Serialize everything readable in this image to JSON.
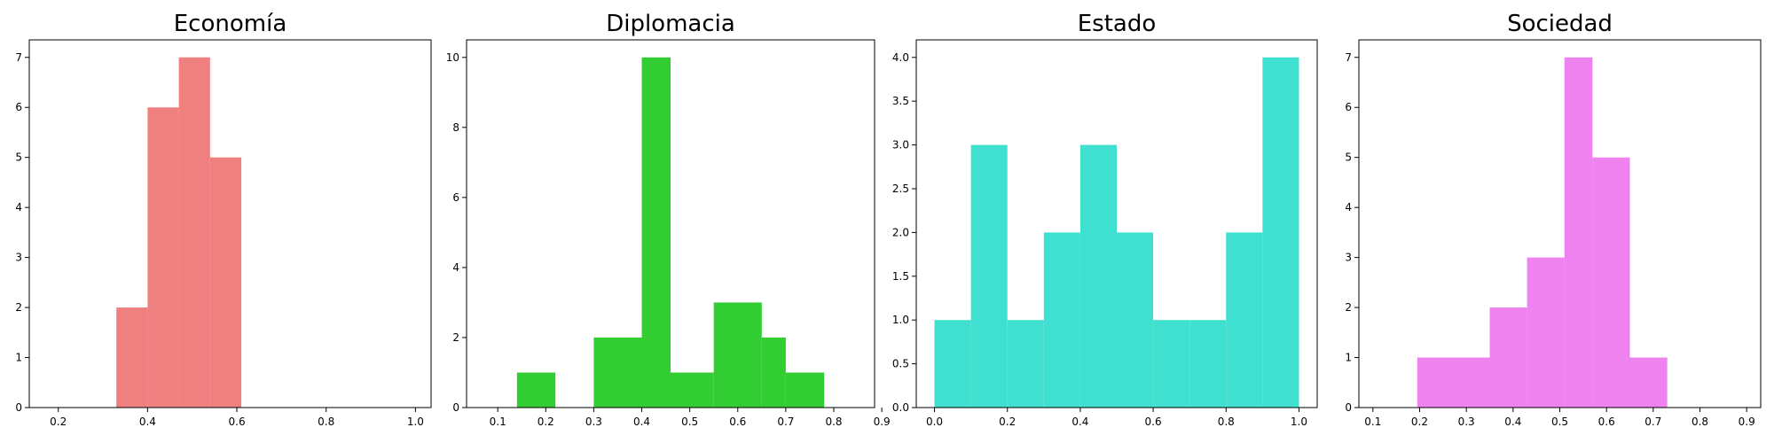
{
  "chart_data": [
    {
      "type": "bar",
      "title": "Economía",
      "color": "#f08080",
      "xlim": [
        0.135,
        1.035
      ],
      "ylim": [
        0,
        7.35
      ],
      "xticks": [
        0.2,
        0.4,
        0.6,
        0.8,
        1.0
      ],
      "xtick_labels": [
        "0.2",
        "0.4",
        "0.6",
        "0.8",
        "1.0"
      ],
      "yticks": [
        0,
        1,
        2,
        3,
        4,
        5,
        6,
        7
      ],
      "ytick_labels": [
        "0",
        "1",
        "2",
        "3",
        "4",
        "5",
        "6",
        "7"
      ],
      "bins": [
        {
          "x0": 0.33,
          "x1": 0.4,
          "count": 2
        },
        {
          "x0": 0.4,
          "x1": 0.47,
          "count": 6
        },
        {
          "x0": 0.47,
          "x1": 0.54,
          "count": 7
        },
        {
          "x0": 0.54,
          "x1": 0.61,
          "count": 5
        },
        {
          "x0": 0.61,
          "x1": 0.61,
          "count": 5
        }
      ]
    },
    {
      "type": "bar",
      "title": "Diplomacia",
      "color": "#32cd32",
      "xlim": [
        0.035,
        0.885
      ],
      "ylim": [
        0,
        10.5
      ],
      "xticks": [
        0.1,
        0.2,
        0.3,
        0.4,
        0.5,
        0.6,
        0.7,
        0.8,
        0.9
      ],
      "xtick_labels": [
        "0.1",
        "0.2",
        "0.3",
        "0.4",
        "0.5",
        "0.6",
        "0.7",
        "0.8",
        "0.9"
      ],
      "yticks": [
        0,
        2,
        4,
        6,
        8,
        10
      ],
      "ytick_labels": [
        "0",
        "2",
        "4",
        "6",
        "8",
        "10"
      ],
      "bins": [
        {
          "x0": 0.14,
          "x1": 0.22,
          "count": 1
        },
        {
          "x0": 0.3,
          "x1": 0.4,
          "count": 2
        },
        {
          "x0": 0.4,
          "x1": 0.46,
          "count": 10
        },
        {
          "x0": 0.46,
          "x1": 0.55,
          "count": 1
        },
        {
          "x0": 0.55,
          "x1": 0.65,
          "count": 3
        },
        {
          "x0": 0.65,
          "x1": 0.7,
          "count": 2
        },
        {
          "x0": 0.7,
          "x1": 0.78,
          "count": 1
        }
      ]
    },
    {
      "type": "bar",
      "title": "Estado",
      "color": "#40e0d0",
      "xlim": [
        -0.05,
        1.05
      ],
      "ylim": [
        0,
        4.2
      ],
      "xticks": [
        0.0,
        0.2,
        0.4,
        0.6,
        0.8,
        1.0
      ],
      "xtick_labels": [
        "0.0",
        "0.2",
        "0.4",
        "0.6",
        "0.8",
        "1.0"
      ],
      "yticks": [
        0,
        0.5,
        1.0,
        1.5,
        2.0,
        2.5,
        3.0,
        3.5,
        4.0
      ],
      "ytick_labels": [
        "0.0",
        "0.5",
        "1.0",
        "1.5",
        "2.0",
        "2.5",
        "3.0",
        "3.5",
        "4.0"
      ],
      "bins": [
        {
          "x0": 0.0,
          "x1": 0.1,
          "count": 1
        },
        {
          "x0": 0.1,
          "x1": 0.2,
          "count": 3
        },
        {
          "x0": 0.2,
          "x1": 0.3,
          "count": 1
        },
        {
          "x0": 0.3,
          "x1": 0.4,
          "count": 2
        },
        {
          "x0": 0.4,
          "x1": 0.5,
          "count": 3
        },
        {
          "x0": 0.5,
          "x1": 0.6,
          "count": 2
        },
        {
          "x0": 0.6,
          "x1": 0.7,
          "count": 1
        },
        {
          "x0": 0.7,
          "x1": 0.8,
          "count": 1
        },
        {
          "x0": 0.8,
          "x1": 0.9,
          "count": 2
        },
        {
          "x0": 0.9,
          "x1": 1.0,
          "count": 4
        }
      ]
    },
    {
      "type": "bar",
      "title": "Sociedad",
      "color": "#ee82ee",
      "xlim": [
        0.07,
        0.93
      ],
      "ylim": [
        0,
        7.35
      ],
      "xticks": [
        0.1,
        0.2,
        0.3,
        0.4,
        0.5,
        0.6,
        0.7,
        0.8,
        0.9
      ],
      "xtick_labels": [
        "0.1",
        "0.2",
        "0.3",
        "0.4",
        "0.5",
        "0.6",
        "0.7",
        "0.8",
        "0.9"
      ],
      "yticks": [
        0,
        1,
        2,
        3,
        4,
        5,
        6,
        7
      ],
      "ytick_labels": [
        "0",
        "1",
        "2",
        "3",
        "4",
        "5",
        "6",
        "7"
      ],
      "bins": [
        {
          "x0": 0.195,
          "x1": 0.35,
          "count": 1
        },
        {
          "x0": 0.35,
          "x1": 0.43,
          "count": 2
        },
        {
          "x0": 0.43,
          "x1": 0.51,
          "count": 3
        },
        {
          "x0": 0.51,
          "x1": 0.57,
          "count": 7
        },
        {
          "x0": 0.57,
          "x1": 0.65,
          "count": 5
        },
        {
          "x0": 0.65,
          "x1": 0.73,
          "count": 1
        }
      ]
    }
  ]
}
